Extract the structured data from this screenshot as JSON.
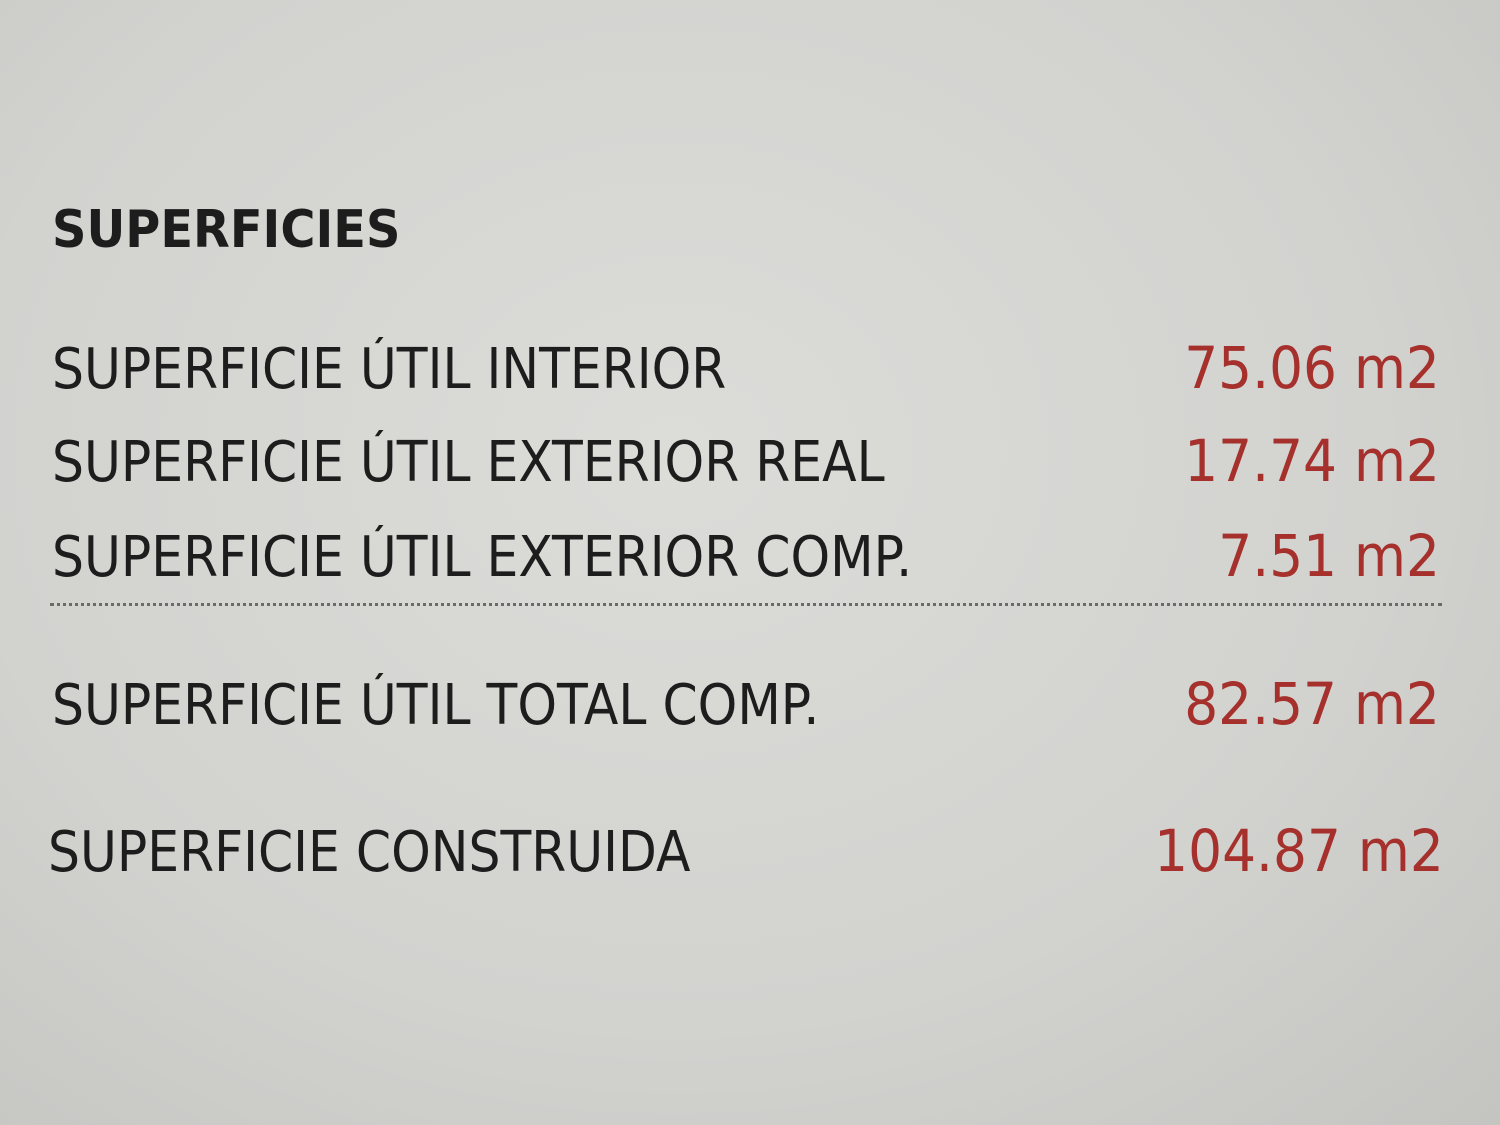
{
  "title": "SUPERFICIES",
  "rows": [
    {
      "label": "SUPERFICIE ÚTIL INTERIOR",
      "value": "75.06 m2"
    },
    {
      "label": "SUPERFICIE ÚTIL EXTERIOR REAL",
      "value": "17.74 m2"
    },
    {
      "label": "SUPERFICIE ÚTIL EXTERIOR COMP.",
      "value": "7.51 m2"
    },
    {
      "label": "SUPERFICIE ÚTIL TOTAL COMP.",
      "value": "82.57 m2"
    },
    {
      "label": "SUPERFICIE CONSTRUIDA",
      "value": "104.87 m2"
    }
  ],
  "colors": {
    "value": "#a5302c",
    "text": "#1d1d1d"
  }
}
